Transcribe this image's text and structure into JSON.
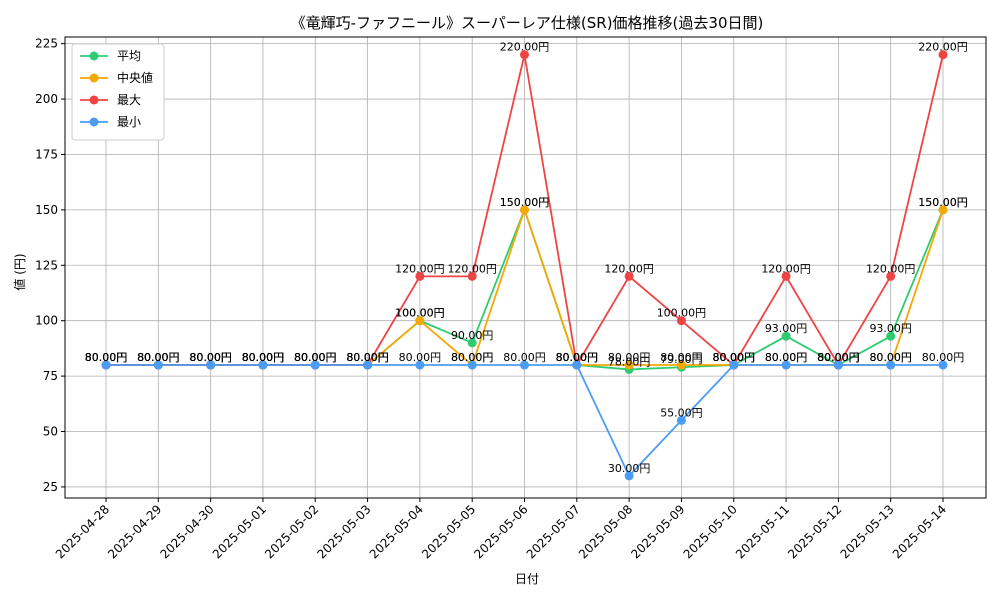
{
  "chart_data": {
    "type": "line",
    "title": "《竜輝巧-ファフニール》スーパーレア仕様(SR)価格推移(過去30日間)",
    "xlabel": "日付",
    "ylabel": "値 (円)",
    "ylim": [
      20,
      228
    ],
    "yticks": [
      25,
      50,
      75,
      100,
      125,
      150,
      175,
      200,
      225
    ],
    "grid": true,
    "legend_position": "top-left",
    "label_suffix": "円",
    "categories": [
      "2025-04-28",
      "2025-04-29",
      "2025-04-30",
      "2025-05-01",
      "2025-05-02",
      "2025-05-03",
      "2025-05-04",
      "2025-05-05",
      "2025-05-06",
      "2025-05-07",
      "2025-05-08",
      "2025-05-09",
      "2025-05-10",
      "2025-05-11",
      "2025-05-12",
      "2025-05-13",
      "2025-05-14"
    ],
    "series": [
      {
        "name": "平均",
        "color": "#2ecc71",
        "values": [
          80,
          80,
          80,
          80,
          80,
          80,
          100,
          90,
          150,
          80,
          78,
          79,
          80,
          93,
          80,
          93,
          150
        ]
      },
      {
        "name": "中央値",
        "color": "#f5a800",
        "values": [
          80,
          80,
          80,
          80,
          80,
          80,
          100,
          80,
          150,
          80,
          80,
          80,
          80,
          80,
          80,
          80,
          150
        ]
      },
      {
        "name": "最大",
        "color": "#ef4444",
        "values": [
          80,
          80,
          80,
          80,
          80,
          80,
          120,
          120,
          220,
          80,
          120,
          100,
          80,
          120,
          80,
          120,
          220
        ]
      },
      {
        "name": "最小",
        "color": "#4b9cf5",
        "values": [
          80,
          80,
          80,
          80,
          80,
          80,
          80,
          80,
          80,
          80,
          30,
          55,
          80,
          80,
          80,
          80,
          80
        ]
      }
    ]
  }
}
